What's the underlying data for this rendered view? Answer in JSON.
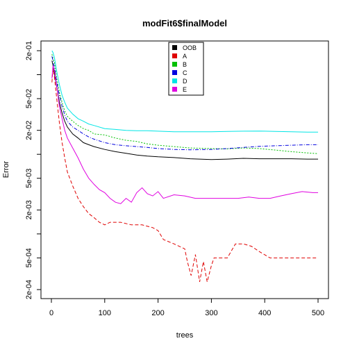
{
  "chart_data": {
    "type": "line",
    "title": "modFit6$finalModel",
    "xlabel": "trees",
    "ylabel": "Error",
    "xlim": [
      0,
      500
    ],
    "ylim": [
      0.0002,
      0.2
    ],
    "log_y": true,
    "grid": false,
    "legend_position": "top-center",
    "x_ticks": [
      {
        "value": 0,
        "label": "0"
      },
      {
        "value": 100,
        "label": "100"
      },
      {
        "value": 200,
        "label": "200"
      },
      {
        "value": 300,
        "label": "300"
      },
      {
        "value": 400,
        "label": "400"
      },
      {
        "value": 500,
        "label": "500"
      }
    ],
    "y_ticks": [
      {
        "value": 0.0002,
        "label": "2e-04"
      },
      {
        "value": 0.0005,
        "label": "5e-04"
      },
      {
        "value": 0.001,
        "label": ""
      },
      {
        "value": 0.002,
        "label": "2e-03"
      },
      {
        "value": 0.005,
        "label": "5e-03"
      },
      {
        "value": 0.01,
        "label": ""
      },
      {
        "value": 0.02,
        "label": "2e-02"
      },
      {
        "value": 0.05,
        "label": "5e-02"
      },
      {
        "value": 0.1,
        "label": ""
      },
      {
        "value": 0.2,
        "label": "2e-01"
      }
    ],
    "series": [
      {
        "name": "OOB",
        "color": "#000000",
        "dash": "",
        "points": [
          [
            1,
            0.15
          ],
          [
            3,
            0.13
          ],
          [
            6,
            0.1
          ],
          [
            10,
            0.07
          ],
          [
            15,
            0.045
          ],
          [
            20,
            0.033
          ],
          [
            25,
            0.026
          ],
          [
            30,
            0.022
          ],
          [
            40,
            0.018
          ],
          [
            50,
            0.016
          ],
          [
            60,
            0.014
          ],
          [
            70,
            0.0132
          ],
          [
            80,
            0.0125
          ],
          [
            100,
            0.0115
          ],
          [
            120,
            0.0108
          ],
          [
            140,
            0.0103
          ],
          [
            160,
            0.0098
          ],
          [
            180,
            0.0095
          ],
          [
            200,
            0.0093
          ],
          [
            230,
            0.0091
          ],
          [
            260,
            0.0088
          ],
          [
            300,
            0.0086
          ],
          [
            330,
            0.0087
          ],
          [
            360,
            0.0089
          ],
          [
            390,
            0.0088
          ],
          [
            420,
            0.0088
          ],
          [
            450,
            0.0088
          ],
          [
            480,
            0.0087
          ],
          [
            500,
            0.0087
          ]
        ]
      },
      {
        "name": "A",
        "color": "#df0000",
        "dash": "5,3",
        "points": [
          [
            1,
            0.08
          ],
          [
            3,
            0.12
          ],
          [
            6,
            0.09
          ],
          [
            10,
            0.05
          ],
          [
            15,
            0.025
          ],
          [
            20,
            0.014
          ],
          [
            25,
            0.009
          ],
          [
            30,
            0.006
          ],
          [
            40,
            0.004
          ],
          [
            50,
            0.0028
          ],
          [
            60,
            0.0022
          ],
          [
            70,
            0.0018
          ],
          [
            80,
            0.0016
          ],
          [
            90,
            0.0014
          ],
          [
            100,
            0.0013
          ],
          [
            110,
            0.0014
          ],
          [
            130,
            0.0014
          ],
          [
            150,
            0.0013
          ],
          [
            170,
            0.0013
          ],
          [
            190,
            0.0012
          ],
          [
            200,
            0.0011
          ],
          [
            210,
            0.00085
          ],
          [
            230,
            0.00075
          ],
          [
            250,
            0.00065
          ],
          [
            255,
            0.00045
          ],
          [
            262,
            0.0003
          ],
          [
            270,
            0.00055
          ],
          [
            278,
            0.00025
          ],
          [
            285,
            0.00045
          ],
          [
            292,
            0.00025
          ],
          [
            300,
            0.0004
          ],
          [
            305,
            0.0005
          ],
          [
            330,
            0.0005
          ],
          [
            345,
            0.00075
          ],
          [
            360,
            0.00075
          ],
          [
            375,
            0.0007
          ],
          [
            390,
            0.0006
          ],
          [
            410,
            0.0005
          ],
          [
            430,
            0.0005
          ],
          [
            450,
            0.0005
          ],
          [
            470,
            0.0005
          ],
          [
            500,
            0.0005
          ]
        ]
      },
      {
        "name": "B",
        "color": "#00c000",
        "dash": "2,2",
        "points": [
          [
            1,
            0.18
          ],
          [
            3,
            0.16
          ],
          [
            6,
            0.14
          ],
          [
            10,
            0.09
          ],
          [
            15,
            0.06
          ],
          [
            20,
            0.045
          ],
          [
            25,
            0.035
          ],
          [
            30,
            0.03
          ],
          [
            40,
            0.026
          ],
          [
            50,
            0.023
          ],
          [
            60,
            0.021
          ],
          [
            70,
            0.02
          ],
          [
            80,
            0.018
          ],
          [
            100,
            0.0175
          ],
          [
            120,
            0.016
          ],
          [
            140,
            0.015
          ],
          [
            160,
            0.0145
          ],
          [
            180,
            0.0135
          ],
          [
            200,
            0.013
          ],
          [
            230,
            0.0125
          ],
          [
            260,
            0.012
          ],
          [
            300,
            0.0118
          ],
          [
            330,
            0.0117
          ],
          [
            360,
            0.012
          ],
          [
            390,
            0.0118
          ],
          [
            420,
            0.0113
          ],
          [
            450,
            0.0108
          ],
          [
            480,
            0.0104
          ],
          [
            500,
            0.0102
          ]
        ]
      },
      {
        "name": "C",
        "color": "#0000df",
        "dash": "5,2,1,2",
        "points": [
          [
            1,
            0.17
          ],
          [
            3,
            0.15
          ],
          [
            6,
            0.12
          ],
          [
            10,
            0.08
          ],
          [
            15,
            0.055
          ],
          [
            20,
            0.04
          ],
          [
            25,
            0.031
          ],
          [
            30,
            0.026
          ],
          [
            40,
            0.022
          ],
          [
            50,
            0.02
          ],
          [
            60,
            0.018
          ],
          [
            70,
            0.0165
          ],
          [
            80,
            0.0155
          ],
          [
            100,
            0.014
          ],
          [
            120,
            0.0132
          ],
          [
            140,
            0.0128
          ],
          [
            160,
            0.0125
          ],
          [
            180,
            0.0122
          ],
          [
            200,
            0.0118
          ],
          [
            230,
            0.0115
          ],
          [
            260,
            0.0114
          ],
          [
            300,
            0.0115
          ],
          [
            330,
            0.0118
          ],
          [
            360,
            0.0122
          ],
          [
            390,
            0.0126
          ],
          [
            420,
            0.0128
          ],
          [
            450,
            0.013
          ],
          [
            480,
            0.0132
          ],
          [
            500,
            0.0132
          ]
        ]
      },
      {
        "name": "D",
        "color": "#00e5e5",
        "dash": "",
        "points": [
          [
            1,
            0.2
          ],
          [
            3,
            0.19
          ],
          [
            6,
            0.16
          ],
          [
            10,
            0.11
          ],
          [
            15,
            0.075
          ],
          [
            20,
            0.055
          ],
          [
            25,
            0.045
          ],
          [
            30,
            0.038
          ],
          [
            40,
            0.032
          ],
          [
            50,
            0.028
          ],
          [
            60,
            0.026
          ],
          [
            70,
            0.024
          ],
          [
            80,
            0.023
          ],
          [
            100,
            0.021
          ],
          [
            120,
            0.0205
          ],
          [
            140,
            0.02
          ],
          [
            160,
            0.0198
          ],
          [
            180,
            0.0198
          ],
          [
            200,
            0.0195
          ],
          [
            230,
            0.0192
          ],
          [
            260,
            0.0192
          ],
          [
            300,
            0.0192
          ],
          [
            330,
            0.0194
          ],
          [
            360,
            0.0195
          ],
          [
            390,
            0.0196
          ],
          [
            420,
            0.0194
          ],
          [
            450,
            0.0192
          ],
          [
            480,
            0.019
          ],
          [
            500,
            0.019
          ]
        ]
      },
      {
        "name": "E",
        "color": "#e000e0",
        "dash": "",
        "points": [
          [
            1,
            0.09
          ],
          [
            3,
            0.13
          ],
          [
            6,
            0.11
          ],
          [
            10,
            0.07
          ],
          [
            15,
            0.04
          ],
          [
            20,
            0.028
          ],
          [
            25,
            0.02
          ],
          [
            30,
            0.016
          ],
          [
            40,
            0.012
          ],
          [
            50,
            0.009
          ],
          [
            60,
            0.0065
          ],
          [
            70,
            0.005
          ],
          [
            80,
            0.0042
          ],
          [
            90,
            0.0036
          ],
          [
            100,
            0.0033
          ],
          [
            110,
            0.0028
          ],
          [
            120,
            0.0025
          ],
          [
            130,
            0.0024
          ],
          [
            140,
            0.0028
          ],
          [
            150,
            0.0025
          ],
          [
            160,
            0.0033
          ],
          [
            170,
            0.0038
          ],
          [
            180,
            0.0032
          ],
          [
            190,
            0.003
          ],
          [
            200,
            0.0034
          ],
          [
            210,
            0.0028
          ],
          [
            230,
            0.0031
          ],
          [
            250,
            0.003
          ],
          [
            270,
            0.0028
          ],
          [
            290,
            0.0028
          ],
          [
            310,
            0.0028
          ],
          [
            330,
            0.0028
          ],
          [
            350,
            0.0028
          ],
          [
            370,
            0.0029
          ],
          [
            390,
            0.0028
          ],
          [
            410,
            0.0028
          ],
          [
            430,
            0.003
          ],
          [
            450,
            0.0032
          ],
          [
            470,
            0.0034
          ],
          [
            490,
            0.0033
          ],
          [
            500,
            0.0033
          ]
        ]
      }
    ]
  }
}
